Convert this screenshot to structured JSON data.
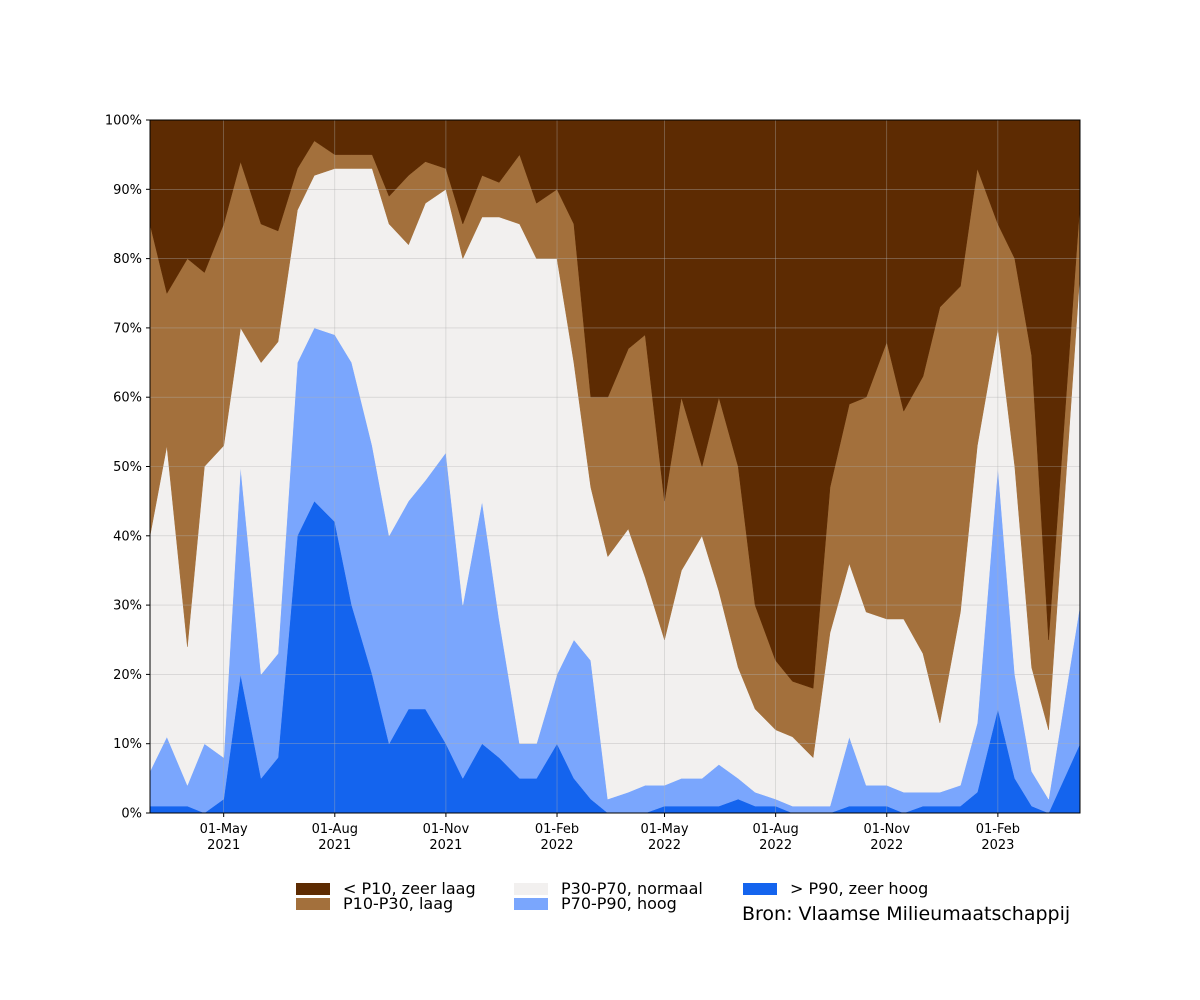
{
  "chart_data": {
    "type": "area",
    "stacked": true,
    "normalized_percent": true,
    "title": "",
    "xlabel": "",
    "ylabel": "",
    "ylim": [
      0,
      100
    ],
    "y_ticks": [
      "0%",
      "10%",
      "20%",
      "30%",
      "40%",
      "50%",
      "60%",
      "70%",
      "80%",
      "90%",
      "100%"
    ],
    "x_range": [
      "2021-03-01",
      "2023-04-10"
    ],
    "x_ticks": [
      {
        "date": "2021-05-01",
        "label1": "01-May",
        "label2": "2021"
      },
      {
        "date": "2021-08-01",
        "label1": "01-Aug",
        "label2": "2021"
      },
      {
        "date": "2021-11-01",
        "label1": "01-Nov",
        "label2": "2021"
      },
      {
        "date": "2022-02-01",
        "label1": "01-Feb",
        "label2": "2022"
      },
      {
        "date": "2022-05-01",
        "label1": "01-May",
        "label2": "2022"
      },
      {
        "date": "2022-08-01",
        "label1": "01-Aug",
        "label2": "2022"
      },
      {
        "date": "2022-11-01",
        "label1": "01-Nov",
        "label2": "2022"
      },
      {
        "date": "2023-02-01",
        "label1": "01-Feb",
        "label2": "2023"
      }
    ],
    "grid": true,
    "legend_position": "bottom",
    "x": [
      "2021-03-01",
      "2021-03-15",
      "2021-04-01",
      "2021-04-15",
      "2021-05-01",
      "2021-05-15",
      "2021-06-01",
      "2021-06-15",
      "2021-07-01",
      "2021-07-15",
      "2021-08-01",
      "2021-08-15",
      "2021-09-01",
      "2021-09-15",
      "2021-10-01",
      "2021-10-15",
      "2021-11-01",
      "2021-11-15",
      "2021-12-01",
      "2021-12-15",
      "2022-01-01",
      "2022-01-15",
      "2022-02-01",
      "2022-02-15",
      "2022-03-01",
      "2022-03-15",
      "2022-04-01",
      "2022-04-15",
      "2022-05-01",
      "2022-05-15",
      "2022-06-01",
      "2022-06-15",
      "2022-07-01",
      "2022-07-15",
      "2022-08-01",
      "2022-08-15",
      "2022-09-01",
      "2022-09-15",
      "2022-10-01",
      "2022-10-15",
      "2022-11-01",
      "2022-11-15",
      "2022-12-01",
      "2022-12-15",
      "2023-01-01",
      "2023-01-15",
      "2023-02-01",
      "2023-02-15",
      "2023-03-01",
      "2023-03-15",
      "2023-04-10"
    ],
    "series": [
      {
        "name": "> P90, zeer hoog",
        "color": "#1464ee",
        "values": [
          1,
          1,
          1,
          0,
          2,
          20,
          5,
          8,
          40,
          45,
          42,
          30,
          20,
          10,
          15,
          15,
          10,
          5,
          10,
          8,
          5,
          5,
          10,
          5,
          2,
          0,
          0,
          0,
          1,
          1,
          1,
          1,
          2,
          1,
          1,
          0,
          0,
          0,
          1,
          1,
          1,
          0,
          1,
          1,
          1,
          3,
          15,
          5,
          1,
          0,
          10
        ]
      },
      {
        "name": "P70-P90, hoog",
        "color": "#7aa6fd",
        "values": [
          5,
          10,
          3,
          10,
          6,
          30,
          15,
          15,
          25,
          25,
          27,
          35,
          33,
          30,
          30,
          33,
          42,
          25,
          35,
          20,
          5,
          5,
          10,
          20,
          20,
          2,
          3,
          4,
          3,
          4,
          4,
          6,
          3,
          2,
          1,
          1,
          1,
          1,
          10,
          3,
          3,
          3,
          2,
          2,
          3,
          10,
          35,
          15,
          5,
          2,
          20
        ]
      },
      {
        "name": "P30-P70, normaal",
        "color": "#f2f0ef",
        "values": [
          34,
          42,
          20,
          40,
          45,
          20,
          45,
          45,
          22,
          22,
          24,
          28,
          40,
          45,
          37,
          40,
          38,
          50,
          41,
          58,
          75,
          70,
          60,
          40,
          25,
          35,
          38,
          30,
          21,
          30,
          35,
          25,
          16,
          12,
          10,
          10,
          7,
          25,
          25,
          25,
          24,
          25,
          20,
          10,
          25,
          40,
          20,
          30,
          15,
          10,
          48
        ]
      },
      {
        "name": "P10-P30, laag",
        "color": "#a3703c",
        "values": [
          45,
          22,
          56,
          28,
          32,
          24,
          20,
          16,
          6,
          5,
          2,
          2,
          2,
          4,
          10,
          6,
          3,
          5,
          6,
          5,
          10,
          8,
          10,
          20,
          13,
          23,
          26,
          35,
          20,
          25,
          10,
          28,
          29,
          15,
          10,
          8,
          10,
          21,
          23,
          31,
          40,
          30,
          40,
          60,
          47,
          40,
          15,
          30,
          45,
          13,
          10
        ]
      },
      {
        "name": "< P10, zeer laag",
        "color": "#5d2b02",
        "values": [
          15,
          25,
          20,
          22,
          15,
          6,
          15,
          16,
          7,
          3,
          5,
          5,
          5,
          11,
          8,
          6,
          7,
          15,
          8,
          9,
          5,
          12,
          10,
          15,
          40,
          40,
          33,
          31,
          55,
          40,
          50,
          40,
          50,
          70,
          78,
          81,
          82,
          53,
          41,
          40,
          32,
          42,
          37,
          27,
          24,
          7,
          15,
          20,
          34,
          75,
          12
        ]
      }
    ]
  },
  "legend": {
    "items": [
      {
        "label": "< P10, zeer laag",
        "color": "#5d2b02"
      },
      {
        "label": "P10-P30, laag",
        "color": "#a3703c"
      },
      {
        "label": "P30-P70, normaal",
        "color": "#f2f0ef"
      },
      {
        "label": "P70-P90, hoog",
        "color": "#7aa6fd"
      },
      {
        "label": "> P90, zeer hoog",
        "color": "#1464ee"
      }
    ]
  },
  "source": "Bron: Vlaamse Milieumaatschappij"
}
